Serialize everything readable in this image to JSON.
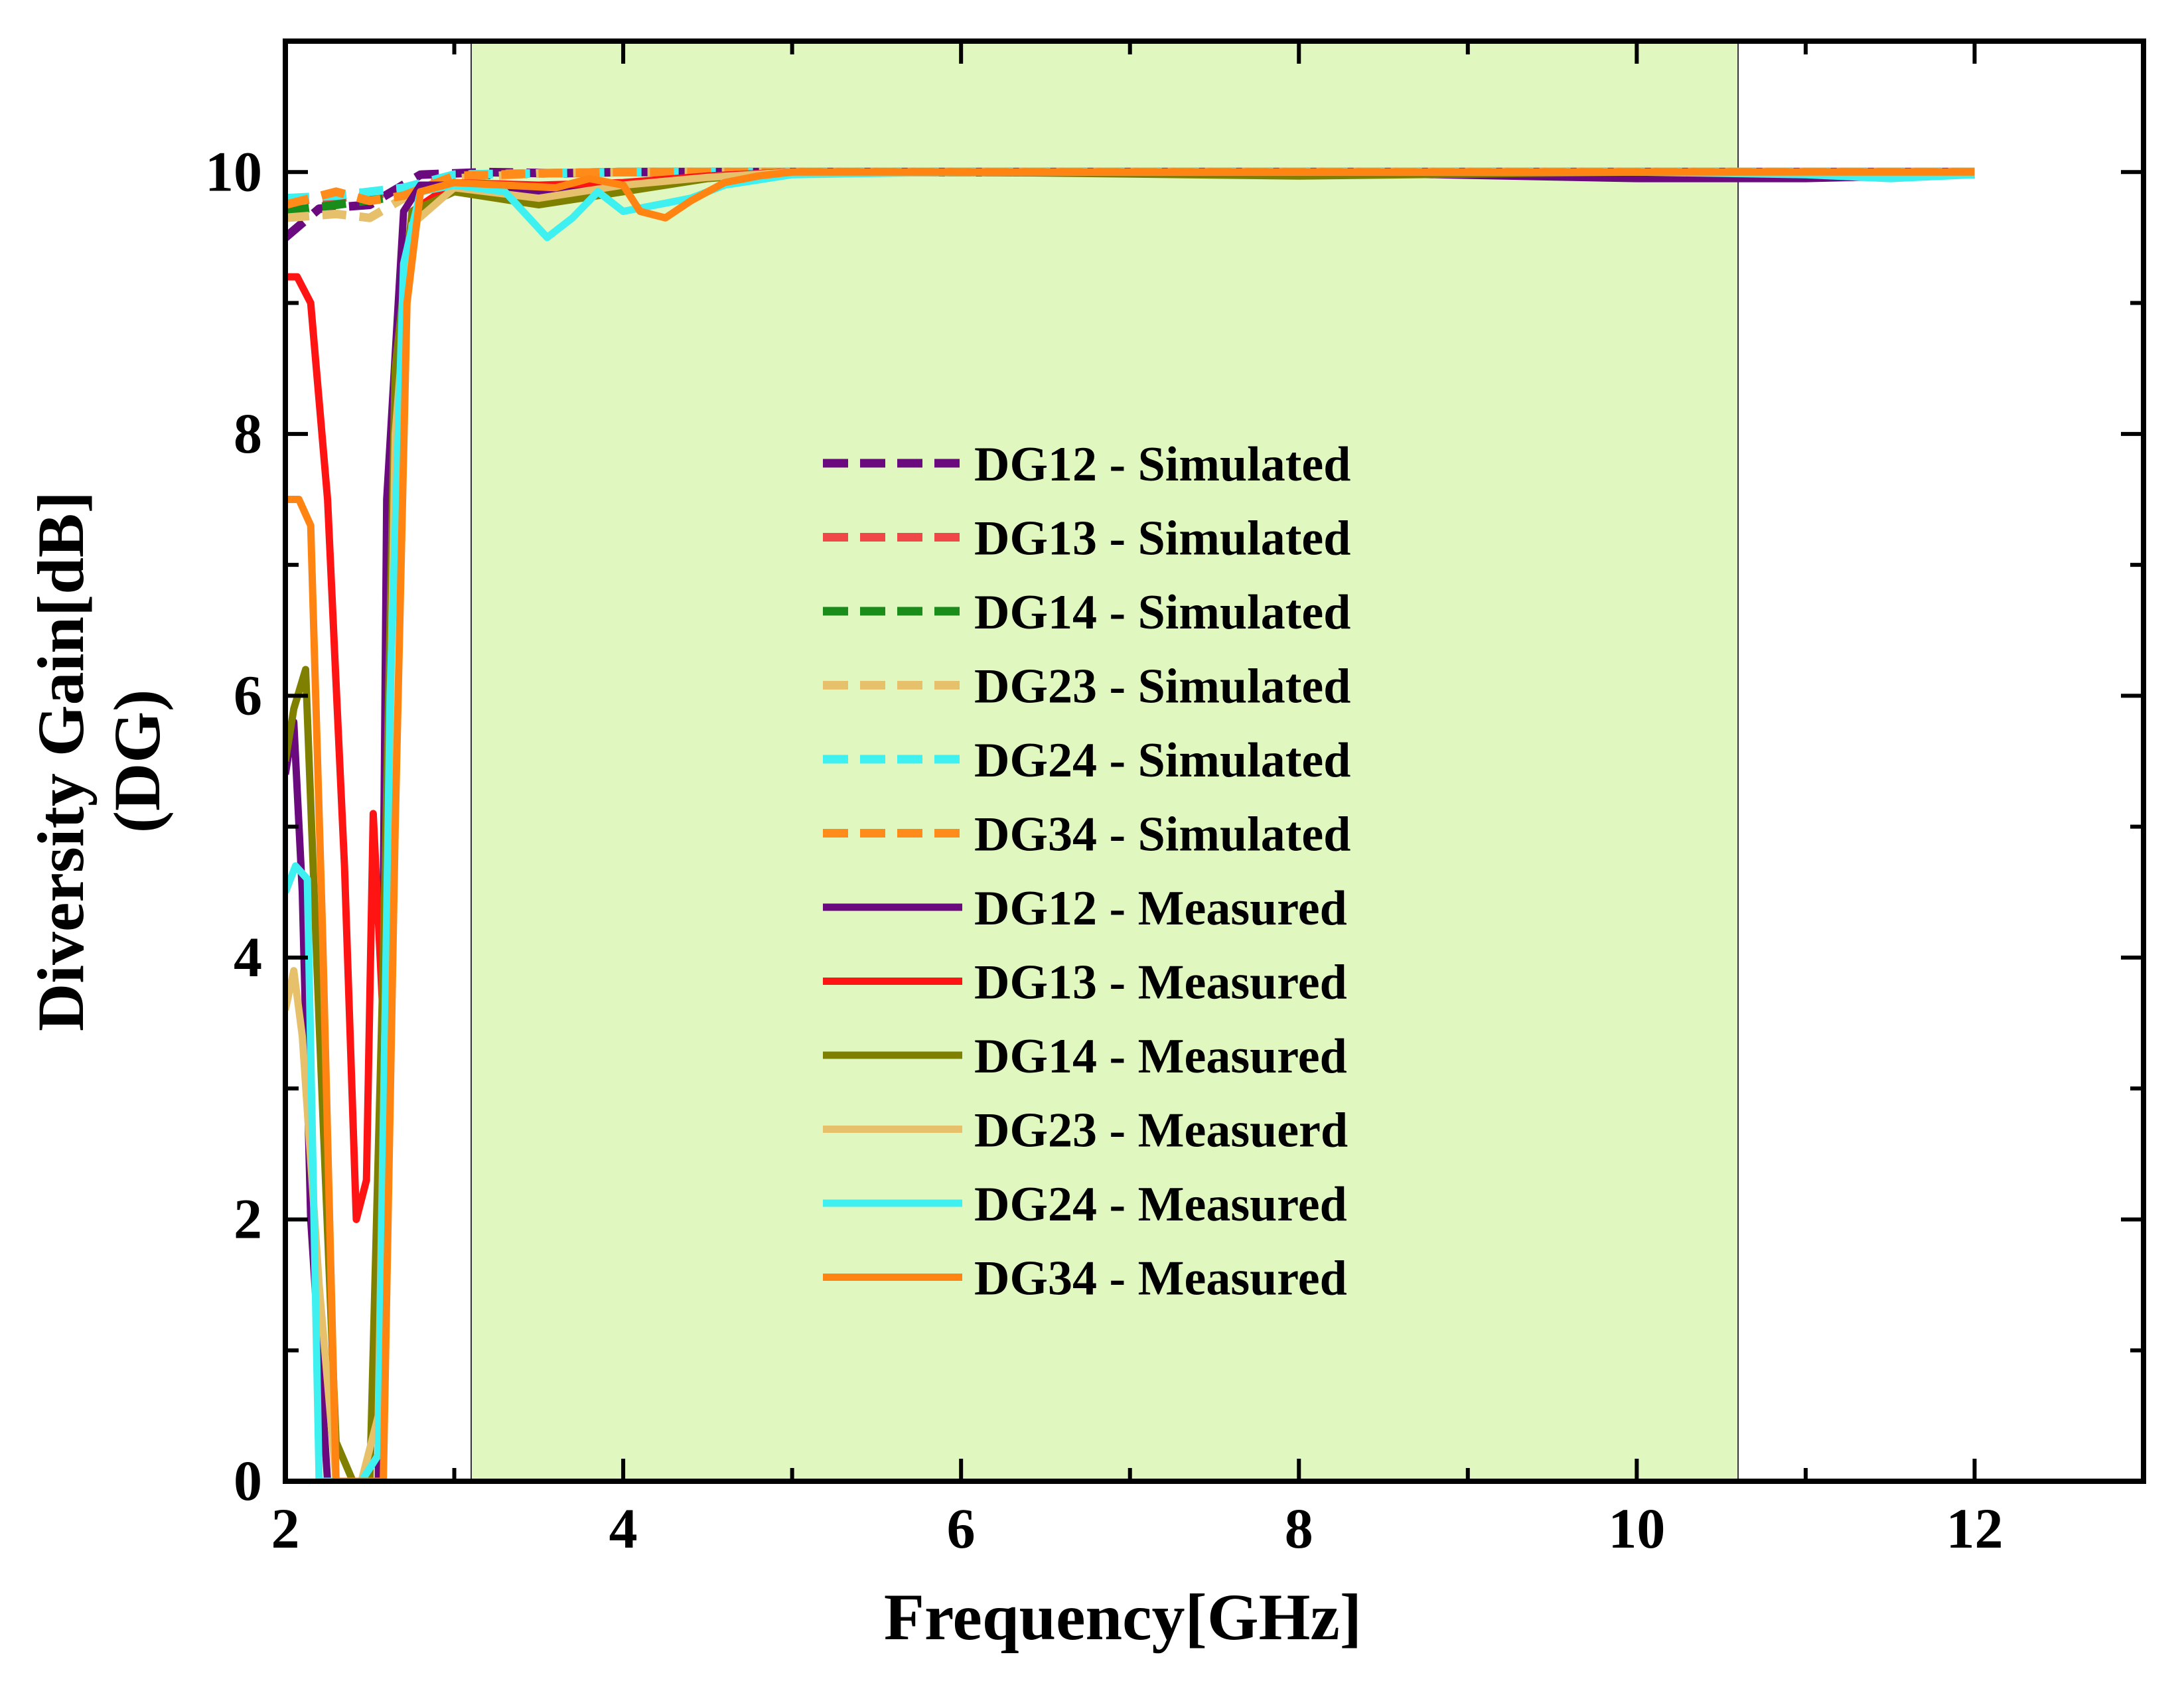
{
  "chart_data": {
    "type": "line",
    "title": "",
    "xlabel": "Frequency[GHz]",
    "ylabel_line1": "Diversity Gain[dB]",
    "ylabel_line2": "(DG)",
    "xlim": [
      2,
      13
    ],
    "ylim": [
      0,
      11
    ],
    "x_ticks": [
      2,
      4,
      6,
      8,
      10,
      12
    ],
    "y_ticks": [
      0,
      2,
      4,
      6,
      8,
      10
    ],
    "x_tick_labels": [
      "2",
      "4",
      "6",
      "8",
      "10",
      "12"
    ],
    "y_tick_labels": [
      "0",
      "2",
      "4",
      "6",
      "8",
      "10"
    ],
    "shaded_band": {
      "x_start": 3.1,
      "x_end": 10.6,
      "color": "#e0f7c0"
    },
    "legend_position": "center",
    "series": [
      {
        "name": "DG12 - Simulated",
        "style": "dashed",
        "color": "#6a0a7e",
        "x": [
          2,
          2.2,
          2.5,
          2.8,
          3.2,
          3.6,
          4,
          4.5,
          5,
          6,
          8,
          10,
          12
        ],
        "y": [
          9.5,
          9.72,
          9.75,
          9.98,
          10.0,
          9.99,
          10.0,
          10.0,
          10.0,
          10.0,
          10.0,
          10.0,
          10.0
        ]
      },
      {
        "name": "DG13 - Simulated",
        "style": "dashed",
        "color": "#f04848",
        "x": [
          2,
          2.3,
          2.7,
          3.0,
          3.5,
          4,
          5,
          6,
          8,
          10,
          12
        ],
        "y": [
          9.78,
          9.8,
          9.85,
          9.98,
          9.99,
          10.0,
          10.0,
          10.0,
          10.0,
          10.0,
          10.0
        ]
      },
      {
        "name": "DG14 - Simulated",
        "style": "dashed",
        "color": "#1a8c1a",
        "x": [
          2,
          2.3,
          2.7,
          3.0,
          3.5,
          4,
          5,
          6,
          8,
          10,
          12
        ],
        "y": [
          9.7,
          9.75,
          9.82,
          9.97,
          9.99,
          10.0,
          10.0,
          10.0,
          10.0,
          10.0,
          10.0
        ]
      },
      {
        "name": "DG23 - Simulated",
        "style": "dashed",
        "color": "#e6c06a",
        "x": [
          2,
          2.3,
          2.5,
          2.7,
          3.0,
          3.5,
          4,
          5,
          6,
          8,
          10,
          12
        ],
        "y": [
          9.65,
          9.68,
          9.65,
          9.8,
          9.95,
          9.99,
          10.0,
          10.0,
          10.0,
          10.0,
          10.0,
          10.0
        ]
      },
      {
        "name": "DG24 - Simulated",
        "style": "dashed",
        "color": "#3ef0f0",
        "x": [
          2,
          2.3,
          2.7,
          3.0,
          3.5,
          4,
          5,
          6,
          8,
          10,
          12
        ],
        "y": [
          9.8,
          9.82,
          9.88,
          9.98,
          9.99,
          10.0,
          10.0,
          10.0,
          10.0,
          10.0,
          10.0
        ]
      },
      {
        "name": "DG34 - Simulated",
        "style": "dashed",
        "color": "#ff8c1a",
        "x": [
          2,
          2.3,
          2.5,
          2.7,
          3.0,
          3.5,
          4,
          5,
          6,
          8,
          10,
          12
        ],
        "y": [
          9.75,
          9.85,
          9.78,
          9.82,
          9.97,
          9.99,
          10.0,
          10.0,
          10.0,
          10.0,
          10.0,
          10.0
        ]
      },
      {
        "name": "DG12 - Measured",
        "style": "solid",
        "color": "#6a0a7e",
        "x": [
          2,
          2.05,
          2.1,
          2.15,
          2.25,
          2.35,
          2.45,
          2.55,
          2.6,
          2.7,
          2.8,
          3.0,
          3.5,
          4,
          4.5,
          5,
          6,
          8,
          10,
          11,
          12
        ],
        "y": [
          5.4,
          5.8,
          4.5,
          2.0,
          0,
          0,
          0,
          0,
          7.5,
          9.7,
          9.9,
          9.9,
          9.85,
          9.9,
          9.97,
          10.0,
          10.0,
          10.0,
          9.95,
          9.95,
          9.98
        ]
      },
      {
        "name": "DG13 - Measured",
        "style": "solid",
        "color": "#ff1414",
        "x": [
          2,
          2.07,
          2.15,
          2.25,
          2.35,
          2.42,
          2.48,
          2.52,
          2.58,
          2.65,
          2.75,
          3.0,
          3.5,
          4,
          4.5,
          5,
          6,
          8,
          10,
          11,
          12
        ],
        "y": [
          9.2,
          9.2,
          9.0,
          7.5,
          4.7,
          2.0,
          2.3,
          5.1,
          3.5,
          8.0,
          9.7,
          9.92,
          9.9,
          9.92,
          9.97,
          10.0,
          10.0,
          10.0,
          10.0,
          10.0,
          10.0
        ]
      },
      {
        "name": "DG14 - Measured",
        "style": "solid",
        "color": "#808000",
        "x": [
          2,
          2.05,
          2.12,
          2.2,
          2.3,
          2.4,
          2.5,
          2.58,
          2.65,
          2.75,
          3.0,
          3.5,
          4,
          4.5,
          5,
          6,
          8,
          10,
          11,
          12
        ],
        "y": [
          5.5,
          5.9,
          6.2,
          3.5,
          0.3,
          0,
          0,
          4.0,
          8.5,
          9.7,
          9.85,
          9.75,
          9.85,
          9.95,
          10.0,
          10.0,
          9.97,
          10.0,
          10.0,
          10.0
        ]
      },
      {
        "name": "DG23 - Measuerd",
        "style": "solid",
        "color": "#e6c06a",
        "x": [
          2,
          2.05,
          2.1,
          2.2,
          2.3,
          2.45,
          2.55,
          2.65,
          2.75,
          3.0,
          3.5,
          4,
          4.5,
          5,
          6,
          8,
          10,
          11,
          12
        ],
        "y": [
          3.6,
          3.9,
          3.4,
          1.5,
          0,
          0,
          0.5,
          8.0,
          9.6,
          9.88,
          9.8,
          9.9,
          9.96,
          10.0,
          10.0,
          10.0,
          10.0,
          10.0,
          10.0
        ]
      },
      {
        "name": "DG24 - Measured",
        "style": "solid",
        "color": "#3ef0f0",
        "x": [
          2,
          2.06,
          2.13,
          2.2,
          2.3,
          2.45,
          2.55,
          2.62,
          2.7,
          2.8,
          3.0,
          3.3,
          3.55,
          3.7,
          3.85,
          4.0,
          4.2,
          4.4,
          4.6,
          5,
          6,
          8,
          10,
          11,
          11.5,
          12
        ],
        "y": [
          4.5,
          4.7,
          4.6,
          0,
          0,
          0,
          0.2,
          6.0,
          9.3,
          9.85,
          9.9,
          9.85,
          9.5,
          9.65,
          9.85,
          9.7,
          9.75,
          9.8,
          9.9,
          9.98,
          10.0,
          10.0,
          10.0,
          9.98,
          9.95,
          9.98
        ]
      },
      {
        "name": "DG34 - Measured",
        "style": "solid",
        "color": "#ff8412",
        "x": [
          2,
          2.08,
          2.15,
          2.22,
          2.3,
          2.4,
          2.5,
          2.58,
          2.65,
          2.72,
          2.8,
          3.0,
          3.3,
          3.6,
          3.8,
          4.0,
          4.1,
          4.25,
          4.4,
          4.6,
          4.8,
          5,
          6,
          8,
          10,
          11,
          12
        ],
        "y": [
          7.5,
          7.5,
          7.3,
          4.2,
          0,
          0,
          0,
          0,
          5.0,
          9.0,
          9.85,
          9.92,
          9.9,
          9.88,
          9.95,
          9.9,
          9.7,
          9.65,
          9.78,
          9.92,
          9.97,
          10.0,
          10.0,
          10.0,
          10.0,
          10.0,
          10.0
        ]
      }
    ]
  }
}
